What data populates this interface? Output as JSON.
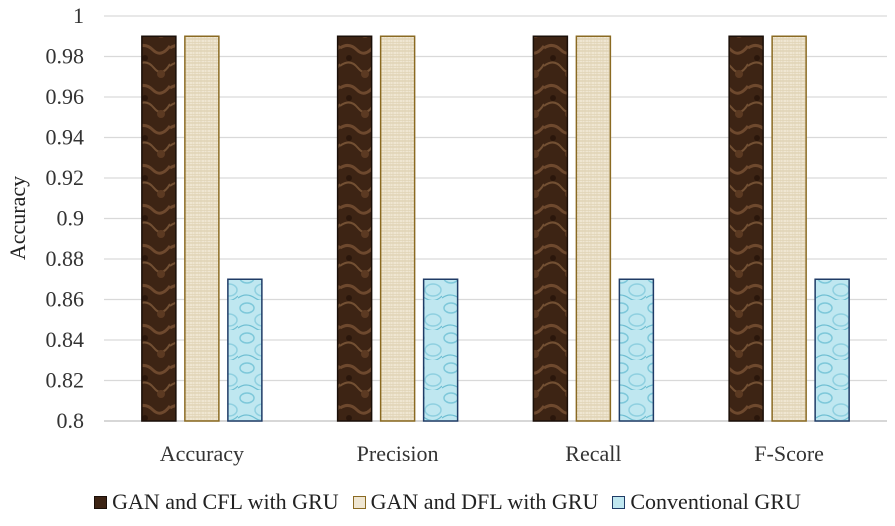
{
  "chart_data": {
    "type": "bar",
    "title": "",
    "xlabel": "",
    "ylabel": "Accuracy",
    "ylim": [
      0.8,
      1.0
    ],
    "yticks": [
      "0.8",
      "0.82",
      "0.84",
      "0.86",
      "0.88",
      "0.9",
      "0.92",
      "0.94",
      "0.96",
      "0.98",
      "1"
    ],
    "grid": true,
    "legend_position": "bottom",
    "categories": [
      "Accuracy",
      "Precision",
      "Recall",
      "F-Score"
    ],
    "series": [
      {
        "name": "GAN and CFL with GRU",
        "values": [
          0.99,
          0.99,
          0.99,
          0.99
        ],
        "color": "#4a2e1a",
        "pattern": "marble"
      },
      {
        "name": "GAN and DFL with GRU",
        "values": [
          0.99,
          0.99,
          0.99,
          0.99
        ],
        "color": "#ede3cc",
        "pattern": "canvas"
      },
      {
        "name": "Conventional GRU",
        "values": [
          0.87,
          0.87,
          0.87,
          0.87
        ],
        "color": "#a9dde9",
        "pattern": "water"
      }
    ]
  }
}
